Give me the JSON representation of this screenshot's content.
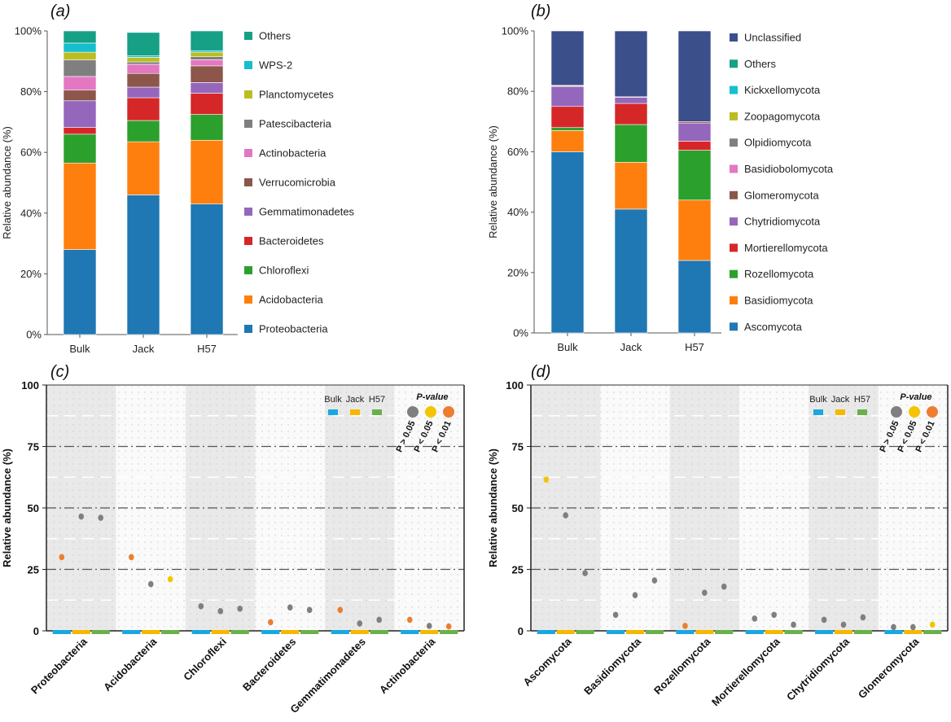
{
  "chart_data": [
    {
      "panel": "(a)",
      "type": "bar",
      "stacked": true,
      "ylabel": "Relative abundance (%)",
      "ylim": [
        0,
        100
      ],
      "yticks": [
        "0%",
        "20%",
        "40%",
        "60%",
        "80%",
        "100%"
      ],
      "categories": [
        "Bulk",
        "Jack",
        "H57"
      ],
      "series": [
        {
          "name": "Proteobacteria",
          "color": "#1f77b4",
          "values": [
            28,
            46,
            43
          ]
        },
        {
          "name": "Acidobacteria",
          "color": "#ff7f0e",
          "values": [
            28.5,
            17.5,
            21
          ]
        },
        {
          "name": "Chloroflexi",
          "color": "#2ca02c",
          "values": [
            9.5,
            7,
            8.5
          ]
        },
        {
          "name": "Bacteroidetes",
          "color": "#d62728",
          "values": [
            2.2,
            7.5,
            7
          ]
        },
        {
          "name": "Gemmatimonadetes",
          "color": "#9467bd",
          "values": [
            8.8,
            3.5,
            3.5
          ]
        },
        {
          "name": "Verrucomicrobia",
          "color": "#8c564b",
          "values": [
            3.5,
            4.5,
            5.5
          ]
        },
        {
          "name": "Actinobacteria",
          "color": "#e377c2",
          "values": [
            4.5,
            3,
            2
          ]
        },
        {
          "name": "Patescibacteria",
          "color": "#7f7f7f",
          "values": [
            5.5,
            0.8,
            1
          ]
        },
        {
          "name": "Planctomycetes",
          "color": "#bcbd22",
          "values": [
            2.5,
            1.5,
            1.5
          ]
        },
        {
          "name": "WPS-2",
          "color": "#17becf",
          "values": [
            3,
            0.5,
            0.5
          ]
        },
        {
          "name": "Others",
          "color": "#16a085",
          "values": [
            4,
            7.7,
            6.5
          ]
        }
      ]
    },
    {
      "panel": "(b)",
      "type": "bar",
      "stacked": true,
      "ylabel": "Relative abundance (%)",
      "ylim": [
        0,
        100
      ],
      "yticks": [
        "0%",
        "20%",
        "40%",
        "60%",
        "80%",
        "100%"
      ],
      "categories": [
        "Bulk",
        "Jack",
        "H57"
      ],
      "series": [
        {
          "name": "Ascomycota",
          "color": "#1f77b4",
          "values": [
            60,
            41,
            24
          ]
        },
        {
          "name": "Basidiomycota",
          "color": "#ff7f0e",
          "values": [
            7,
            15.5,
            20
          ]
        },
        {
          "name": "Rozellomycota",
          "color": "#2ca02c",
          "values": [
            1,
            12.5,
            16.5
          ]
        },
        {
          "name": "Mortierellomycota",
          "color": "#d62728",
          "values": [
            7,
            7,
            3
          ]
        },
        {
          "name": "Chytridiomycota",
          "color": "#9467bd",
          "values": [
            6.5,
            2,
            6
          ]
        },
        {
          "name": "Glomeromycota",
          "color": "#8c564b",
          "values": [
            0.3,
            0.2,
            0.5
          ]
        },
        {
          "name": "Basidiobolomycota",
          "color": "#e377c2",
          "values": [
            0.2,
            0,
            0
          ]
        },
        {
          "name": "Olpidiomycota",
          "color": "#7f7f7f",
          "values": [
            0,
            0,
            0
          ]
        },
        {
          "name": "Zoopagomycota",
          "color": "#bcbd22",
          "values": [
            0,
            0,
            0
          ]
        },
        {
          "name": "Kickxellomycota",
          "color": "#17becf",
          "values": [
            0,
            0,
            0
          ]
        },
        {
          "name": "Others",
          "color": "#16a085",
          "values": [
            0,
            0,
            0
          ]
        },
        {
          "name": "Unclassified",
          "color": "#3b4f8a",
          "values": [
            18,
            21.8,
            30
          ]
        }
      ]
    },
    {
      "panel": "(c)",
      "type": "scatter",
      "ylabel": "Relative abundance (%)",
      "ylim": [
        0,
        100
      ],
      "yticks": [
        0,
        25,
        50,
        75,
        100
      ],
      "groups": [
        "Bulk",
        "Jack",
        "H57"
      ],
      "group_colors": [
        "#1aa7e0",
        "#f5b700",
        "#6ab04c"
      ],
      "pvalue_title": "P-value",
      "pvalue_labels": [
        "P > 0.05",
        "P < 0.05",
        "P < 0.01"
      ],
      "pvalue_colors": [
        "#7f7f7f",
        "#f5c400",
        "#ed7d31"
      ],
      "categories": [
        "Proteobacteria",
        "Acidobacteria",
        "Chloroflexi",
        "Bacteroidetes",
        "Gemmatimonadetes",
        "Actinobacteria"
      ],
      "points": [
        [
          {
            "value": 30,
            "p": 2
          },
          {
            "value": 46.5,
            "p": 0
          },
          {
            "value": 46,
            "p": 0
          }
        ],
        [
          {
            "value": 30,
            "p": 2
          },
          {
            "value": 19,
            "p": 0
          },
          {
            "value": 21,
            "p": 1
          }
        ],
        [
          {
            "value": 10,
            "p": 0
          },
          {
            "value": 8,
            "p": 0
          },
          {
            "value": 9,
            "p": 0
          }
        ],
        [
          {
            "value": 3.5,
            "p": 2
          },
          {
            "value": 9.5,
            "p": 0
          },
          {
            "value": 8.5,
            "p": 0
          }
        ],
        [
          {
            "value": 8.5,
            "p": 2
          },
          {
            "value": 3,
            "p": 0
          },
          {
            "value": 4.5,
            "p": 0
          }
        ],
        [
          {
            "value": 4.5,
            "p": 2
          },
          {
            "value": 2,
            "p": 0
          },
          {
            "value": 1.8,
            "p": 2
          }
        ]
      ]
    },
    {
      "panel": "(d)",
      "type": "scatter",
      "ylabel": "Relative abundance (%)",
      "ylim": [
        0,
        100
      ],
      "yticks": [
        0,
        25,
        50,
        75,
        100
      ],
      "groups": [
        "Bulk",
        "Jack",
        "H57"
      ],
      "group_colors": [
        "#1aa7e0",
        "#f5b700",
        "#6ab04c"
      ],
      "pvalue_title": "P-value",
      "pvalue_labels": [
        "P > 0.05",
        "P < 0.05",
        "P < 0.01"
      ],
      "pvalue_colors": [
        "#7f7f7f",
        "#f5c400",
        "#ed7d31"
      ],
      "categories": [
        "Ascomycota",
        "Basidiomycota",
        "Rozellomycota",
        "Mortierellomycota",
        "Chytridiomycota",
        "Glomeromycota"
      ],
      "points": [
        [
          {
            "value": 61.5,
            "p": 1
          },
          {
            "value": 47,
            "p": 0
          },
          {
            "value": 23.5,
            "p": 0
          }
        ],
        [
          {
            "value": 6.5,
            "p": 0
          },
          {
            "value": 14.5,
            "p": 0
          },
          {
            "value": 20.5,
            "p": 0
          }
        ],
        [
          {
            "value": 2,
            "p": 2
          },
          {
            "value": 15.5,
            "p": 0
          },
          {
            "value": 18,
            "p": 0
          }
        ],
        [
          {
            "value": 5,
            "p": 0
          },
          {
            "value": 6.5,
            "p": 0
          },
          {
            "value": 2.5,
            "p": 0
          }
        ],
        [
          {
            "value": 4.5,
            "p": 0
          },
          {
            "value": 2.5,
            "p": 0
          },
          {
            "value": 5.5,
            "p": 0
          }
        ],
        [
          {
            "value": 1.5,
            "p": 0
          },
          {
            "value": 1.5,
            "p": 0
          },
          {
            "value": 2.5,
            "p": 1
          }
        ]
      ]
    }
  ]
}
